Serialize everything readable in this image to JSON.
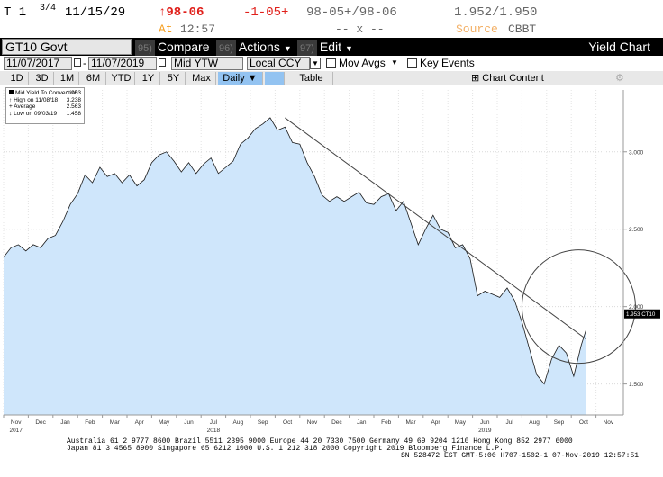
{
  "quote": {
    "ticker": "T 1",
    "coupon_frac": "3/4",
    "maturity": "11/15/29",
    "last_price": "98-06",
    "change": "-1-05+",
    "bid_ask": "98-05+/98-06",
    "yield_pair": "1.952/1.950",
    "at_label": "At",
    "time": "12:57",
    "size": "-- x --",
    "source_label": "Source",
    "source": "CBBT"
  },
  "security_bar": {
    "name": "GT10 Govt",
    "compare_num": "95)",
    "compare": "Compare",
    "actions_num": "96)",
    "actions": "Actions",
    "edit_num": "97)",
    "edit": "Edit",
    "title": "Yield Chart"
  },
  "controls": {
    "start_date": "11/07/2017",
    "end_date": "11/07/2019",
    "field": "Mid YTW",
    "currency": "Local CCY",
    "mov_avgs": "Mov Avgs",
    "key_events": "Key Events"
  },
  "tabs": [
    "1D",
    "3D",
    "1M",
    "6M",
    "YTD",
    "1Y",
    "5Y",
    "Max"
  ],
  "frequency": "Daily",
  "table_label": "Table",
  "chart_content_label": "Chart Content",
  "legend": {
    "series": "Mid Yield To Convention",
    "series_val": "1.953",
    "high_label": "High on 11/08/18",
    "high_val": "3.238",
    "avg_label": "Average",
    "avg_val": "2.563",
    "low_label": "Low on 09/03/19",
    "low_val": "1.458"
  },
  "footer": {
    "line1": "Australia 61 2 9777 8600 Brazil 5511 2395 9000 Europe 44 20 7330 7500 Germany 49 69 9204 1210 Hong Kong 852 2977 6000",
    "line2": "Japan 81 3 4565 8900        Singapore 65 6212 1000        U.S. 1 212 318 2000                 Copyright 2019 Bloomberg Finance L.P.",
    "line3": "SN 528472 EST  GMT-5:00 H707-1502-1 07-Nov-2019 12:57:51"
  },
  "colors": {
    "fill": "#cfe6fb",
    "line": "#1a1a1a",
    "accent_red": "#e0201b",
    "accent_orange": "#f59c1a"
  },
  "chart_data": {
    "type": "area",
    "ylim": [
      1.3,
      3.4
    ],
    "y_ticks": [
      "3.000",
      "2.500",
      "2.000",
      "1.500"
    ],
    "y_tick_values": [
      3.0,
      2.5,
      2.0,
      1.5
    ],
    "last_value_label": "1.953 CT10",
    "last_value": 1.953,
    "x_month_labels": [
      "Nov",
      "Dec",
      "Jan",
      "Feb",
      "Mar",
      "Apr",
      "May",
      "Jun",
      "Jul",
      "Aug",
      "Sep",
      "Oct",
      "Nov",
      "Dec",
      "Jan",
      "Feb",
      "Mar",
      "Apr",
      "May",
      "Jun",
      "Jul",
      "Aug",
      "Sep",
      "Oct",
      "Nov"
    ],
    "x_year_labels": [
      {
        "label": "2017",
        "month_index": 0
      },
      {
        "label": "2018",
        "month_index": 8
      },
      {
        "label": "2019",
        "month_index": 19
      }
    ],
    "x_months": 24,
    "series": [
      {
        "x": [
          0,
          0.3,
          0.6,
          0.9,
          1.2,
          1.5,
          1.8,
          2.1,
          2.4,
          2.7,
          3.0,
          3.3,
          3.6,
          3.9,
          4.2,
          4.5,
          4.8,
          5.1,
          5.4,
          5.7,
          6.0,
          6.3,
          6.6,
          6.9,
          7.2,
          7.5,
          7.8,
          8.1,
          8.4,
          8.7,
          9.0,
          9.3,
          9.6,
          9.9,
          10.2,
          10.5,
          10.8,
          11.1,
          11.4,
          11.7,
          12.0,
          12.3,
          12.6,
          12.9,
          13.2,
          13.5,
          13.8,
          14.1,
          14.4,
          14.7,
          15.0,
          15.3,
          15.6,
          15.9,
          16.2,
          16.5,
          16.8,
          17.1,
          17.4,
          17.7,
          18.0,
          18.3,
          18.6,
          18.9,
          19.2,
          19.5,
          19.8,
          20.1,
          20.4,
          20.7,
          21.0,
          21.3,
          21.6,
          21.9,
          22.2,
          22.5,
          22.8,
          23.1,
          23.4,
          23.6
        ],
        "y": [
          2.32,
          2.38,
          2.4,
          2.36,
          2.4,
          2.38,
          2.44,
          2.46,
          2.55,
          2.66,
          2.73,
          2.85,
          2.8,
          2.9,
          2.84,
          2.86,
          2.8,
          2.85,
          2.78,
          2.82,
          2.93,
          2.98,
          3.0,
          2.94,
          2.87,
          2.93,
          2.86,
          2.92,
          2.96,
          2.86,
          2.9,
          2.94,
          3.05,
          3.09,
          3.15,
          3.18,
          3.22,
          3.14,
          3.16,
          3.06,
          3.05,
          2.93,
          2.84,
          2.72,
          2.68,
          2.71,
          2.68,
          2.71,
          2.74,
          2.67,
          2.66,
          2.71,
          2.73,
          2.62,
          2.68,
          2.54,
          2.4,
          2.5,
          2.59,
          2.5,
          2.48,
          2.38,
          2.4,
          2.31,
          2.07,
          2.1,
          2.08,
          2.06,
          2.12,
          2.04,
          1.9,
          1.73,
          1.56,
          1.5,
          1.66,
          1.75,
          1.7,
          1.55,
          1.75,
          1.85
        ]
      }
    ],
    "annotations": {
      "trendline": {
        "x": [
          11.4,
          23.6
        ],
        "y": [
          3.22,
          1.79
        ]
      },
      "circle": {
        "x_center": 23.3,
        "y_center": 2.0,
        "radius_months": 2.3
      }
    }
  }
}
